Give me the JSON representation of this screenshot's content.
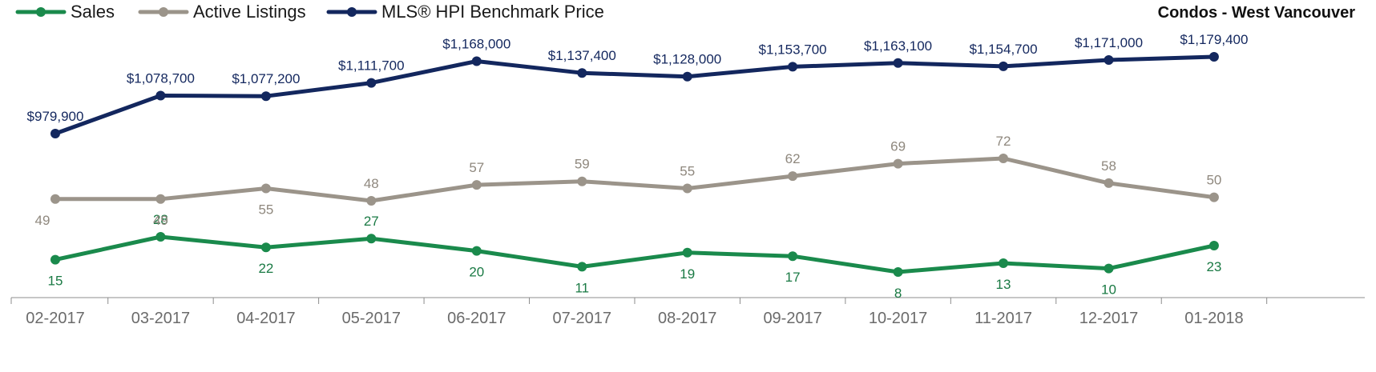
{
  "chart_data": {
    "type": "line",
    "title": "Condos - West Vancouver",
    "categories": [
      "02-2017",
      "03-2017",
      "04-2017",
      "05-2017",
      "06-2017",
      "07-2017",
      "08-2017",
      "09-2017",
      "10-2017",
      "11-2017",
      "12-2017",
      "01-2018"
    ],
    "legend_position": "top-left",
    "grid": false,
    "series": [
      {
        "name": "Sales",
        "color": "#1a8a4c",
        "values": [
          15,
          28,
          22,
          27,
          20,
          11,
          19,
          17,
          8,
          13,
          10,
          23
        ],
        "labels": [
          "15",
          "28",
          "22",
          "27",
          "20",
          "11",
          "19",
          "17",
          "8",
          "13",
          "10",
          "23"
        ]
      },
      {
        "name": "Active Listings",
        "color": "#9b948a",
        "values": [
          49,
          49,
          55,
          48,
          57,
          59,
          55,
          62,
          69,
          72,
          58,
          50
        ],
        "labels": [
          "49",
          "49",
          "55",
          "48",
          "57",
          "59",
          "55",
          "62",
          "69",
          "72",
          "58",
          "50"
        ]
      },
      {
        "name": "MLS® HPI Benchmark Price",
        "color": "#13275e",
        "values": [
          979900,
          1078700,
          1077200,
          1111700,
          1168000,
          1137400,
          1128000,
          1153700,
          1163100,
          1154700,
          1171000,
          1179400
        ],
        "labels": [
          "$979,900",
          "$1,078,700",
          "$1,077,200",
          "$1,111,700",
          "$1,168,000",
          "$1,137,400",
          "$1,128,000",
          "$1,153,700",
          "$1,163,100",
          "$1,154,700",
          "$1,171,000",
          "$1,179,400"
        ]
      }
    ]
  }
}
